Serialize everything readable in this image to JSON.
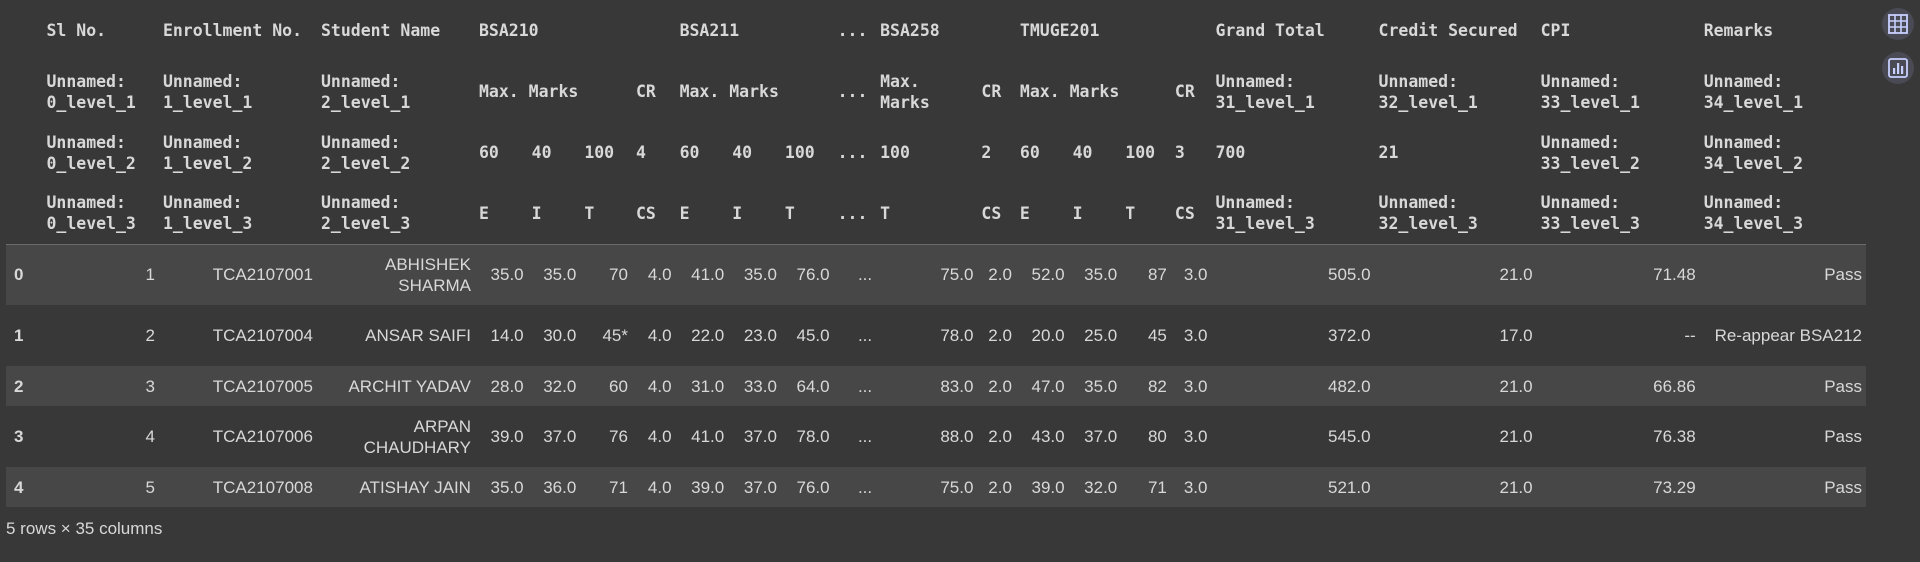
{
  "header": {
    "level0": [
      "Sl No.",
      "Enrollment No.",
      "Student Name",
      "BSA210",
      "BSA211",
      "...",
      "BSA258",
      "TMUGE201",
      "Grand Total",
      "Credit Secured",
      "CPI",
      "Remarks"
    ],
    "level1": {
      "c0": "Unnamed: 0_level_1",
      "c1": "Unnamed: 1_level_1",
      "c2": "Unnamed: 2_level_1",
      "bsa210_max": "Max. Marks",
      "bsa210_cr": "CR",
      "bsa211_max": "Max. Marks",
      "ellipsis": "...",
      "bsa258_max": "Max. Marks",
      "bsa258_cr": "CR",
      "tmuge_max": "Max. Marks",
      "tmuge_cr": "CR",
      "c31": "Unnamed: 31_level_1",
      "c32": "Unnamed: 32_level_1",
      "c33": "Unnamed: 33_level_1",
      "c34": "Unnamed: 34_level_1"
    },
    "level2": [
      "Unnamed: 0_level_2",
      "Unnamed: 1_level_2",
      "Unnamed: 2_level_2",
      "60",
      "40",
      "100",
      "4",
      "60",
      "40",
      "100",
      "...",
      "100",
      "2",
      "60",
      "40",
      "100",
      "3",
      "700",
      "21",
      "Unnamed: 33_level_2",
      "Unnamed: 34_level_2"
    ],
    "level3": [
      "Unnamed: 0_level_3",
      "Unnamed: 1_level_3",
      "Unnamed: 2_level_3",
      "E",
      "I",
      "T",
      "CS",
      "E",
      "I",
      "T",
      "...",
      "T",
      "CS",
      "E",
      "I",
      "T",
      "CS",
      "Unnamed: 31_level_3",
      "Unnamed: 32_level_3",
      "Unnamed: 33_level_3",
      "Unnamed: 34_level_3"
    ]
  },
  "rows": [
    [
      "0",
      "1",
      "TCA2107001",
      "ABHISHEK SHARMA",
      "35.0",
      "35.0",
      "70",
      "4.0",
      "41.0",
      "35.0",
      "76.0",
      "...",
      "75.0",
      "2.0",
      "52.0",
      "35.0",
      "87",
      "3.0",
      "505.0",
      "21.0",
      "71.48",
      "Pass"
    ],
    [
      "1",
      "2",
      "TCA2107004",
      "ANSAR SAIFI",
      "14.0",
      "30.0",
      "45*",
      "4.0",
      "22.0",
      "23.0",
      "45.0",
      "...",
      "78.0",
      "2.0",
      "20.0",
      "25.0",
      "45",
      "3.0",
      "372.0",
      "17.0",
      "--",
      "Re-appear BSA212"
    ],
    [
      "2",
      "3",
      "TCA2107005",
      "ARCHIT YADAV",
      "28.0",
      "32.0",
      "60",
      "4.0",
      "31.0",
      "33.0",
      "64.0",
      "...",
      "83.0",
      "2.0",
      "47.0",
      "35.0",
      "82",
      "3.0",
      "482.0",
      "21.0",
      "66.86",
      "Pass"
    ],
    [
      "3",
      "4",
      "TCA2107006",
      "ARPAN CHAUDHARY",
      "39.0",
      "37.0",
      "76",
      "4.0",
      "41.0",
      "37.0",
      "78.0",
      "...",
      "88.0",
      "2.0",
      "43.0",
      "37.0",
      "80",
      "3.0",
      "545.0",
      "21.0",
      "76.38",
      "Pass"
    ],
    [
      "4",
      "5",
      "TCA2107008",
      "ATISHAY JAIN",
      "35.0",
      "36.0",
      "71",
      "4.0",
      "39.0",
      "37.0",
      "76.0",
      "...",
      "75.0",
      "2.0",
      "39.0",
      "32.0",
      "71",
      "3.0",
      "521.0",
      "21.0",
      "73.29",
      "Pass"
    ]
  ],
  "shape_text": "5 rows × 35 columns",
  "icons": {
    "table": "table-icon",
    "chart": "bar-chart-icon"
  },
  "colors": {
    "background": "#383838",
    "row_alt": "#474747",
    "text": "#d8d8d8",
    "icon_button": "#4a4a55"
  }
}
